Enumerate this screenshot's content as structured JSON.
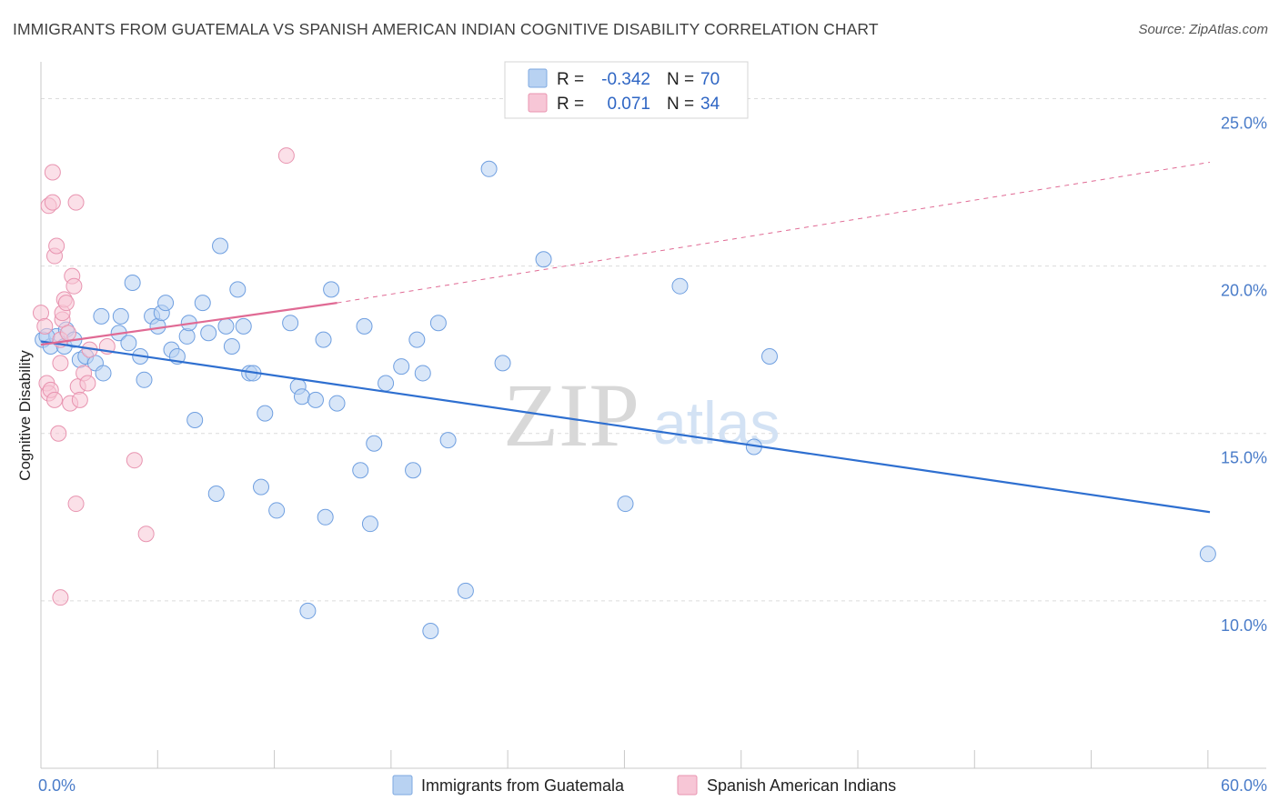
{
  "header": {
    "title": "IMMIGRANTS FROM GUATEMALA VS SPANISH AMERICAN INDIAN COGNITIVE DISABILITY CORRELATION CHART",
    "source": "Source: ZipAtlas.com"
  },
  "watermark": {
    "zip": "ZIP",
    "atlas": "atlas"
  },
  "legend": {
    "rows": [
      {
        "r_label": "R =",
        "r_value": "-0.342",
        "n_label": "N =",
        "n_value": "70",
        "fill": "#b8d2f2",
        "stroke": "#7ea8e0"
      },
      {
        "r_label": "R =",
        "r_value": "0.071",
        "n_label": "N =",
        "n_value": "34",
        "fill": "#f7c6d6",
        "stroke": "#e894b0"
      }
    ]
  },
  "bottom_legend": [
    {
      "label": "Immigrants from Guatemala",
      "fill": "#b8d2f2",
      "stroke": "#7ea8e0"
    },
    {
      "label": "Spanish American Indians",
      "fill": "#f7c6d6",
      "stroke": "#e894b0"
    }
  ],
  "chart_data": {
    "type": "scatter",
    "title": "IMMIGRANTS FROM GUATEMALA VS SPANISH AMERICAN INDIAN COGNITIVE DISABILITY CORRELATION CHART",
    "xlabel": "",
    "ylabel": "Cognitive Disability",
    "xlim": [
      0,
      60
    ],
    "ylim": [
      5,
      25.8
    ],
    "x_tick_labels": [
      "0.0%",
      "60.0%"
    ],
    "y_ticks": [
      10,
      15,
      20,
      25
    ],
    "y_tick_labels": [
      "10.0%",
      "15.0%",
      "20.0%",
      "25.0%"
    ],
    "grid": true,
    "legend_position": "top-center",
    "series": [
      {
        "name": "Immigrants from Guatemala",
        "color": "#6f9fe0",
        "line_color": "#2e6fd0",
        "trend": {
          "x": [
            0,
            60
          ],
          "y": [
            17.75,
            12.65
          ]
        },
        "points": [
          [
            0.1,
            17.8
          ],
          [
            0.5,
            17.6
          ],
          [
            0.8,
            17.9
          ],
          [
            1.2,
            17.6
          ],
          [
            1.3,
            18.1
          ],
          [
            1.7,
            17.8
          ],
          [
            2.0,
            17.2
          ],
          [
            2.3,
            17.3
          ],
          [
            2.8,
            17.1
          ],
          [
            3.2,
            16.8
          ],
          [
            3.1,
            18.5
          ],
          [
            4.0,
            18.0
          ],
          [
            4.1,
            18.5
          ],
          [
            4.5,
            17.7
          ],
          [
            4.7,
            19.5
          ],
          [
            5.1,
            17.3
          ],
          [
            5.3,
            16.6
          ],
          [
            5.7,
            18.5
          ],
          [
            6.0,
            18.2
          ],
          [
            6.2,
            18.6
          ],
          [
            6.4,
            18.9
          ],
          [
            6.7,
            17.5
          ],
          [
            7.0,
            17.3
          ],
          [
            7.5,
            17.9
          ],
          [
            7.6,
            18.3
          ],
          [
            7.9,
            15.4
          ],
          [
            8.3,
            18.9
          ],
          [
            8.6,
            18.0
          ],
          [
            9.0,
            13.2
          ],
          [
            9.2,
            20.6
          ],
          [
            9.5,
            18.2
          ],
          [
            9.8,
            17.6
          ],
          [
            10.1,
            19.3
          ],
          [
            10.4,
            18.2
          ],
          [
            10.7,
            16.8
          ],
          [
            10.9,
            16.8
          ],
          [
            11.3,
            13.4
          ],
          [
            11.5,
            15.6
          ],
          [
            12.1,
            12.7
          ],
          [
            12.8,
            18.3
          ],
          [
            13.2,
            16.4
          ],
          [
            13.4,
            16.1
          ],
          [
            13.7,
            9.7
          ],
          [
            14.1,
            16.0
          ],
          [
            14.5,
            17.8
          ],
          [
            14.6,
            12.5
          ],
          [
            14.9,
            19.3
          ],
          [
            15.2,
            15.9
          ],
          [
            16.4,
            13.9
          ],
          [
            16.6,
            18.2
          ],
          [
            16.9,
            12.3
          ],
          [
            17.1,
            14.7
          ],
          [
            17.7,
            16.5
          ],
          [
            18.5,
            17.0
          ],
          [
            19.1,
            13.9
          ],
          [
            19.3,
            17.8
          ],
          [
            19.6,
            16.8
          ],
          [
            20.0,
            9.1
          ],
          [
            20.4,
            18.3
          ],
          [
            20.9,
            14.8
          ],
          [
            21.8,
            10.3
          ],
          [
            23.0,
            22.9
          ],
          [
            23.7,
            17.1
          ],
          [
            25.8,
            20.2
          ],
          [
            30.0,
            12.9
          ],
          [
            32.8,
            19.4
          ],
          [
            36.6,
            14.6
          ],
          [
            37.4,
            17.3
          ],
          [
            59.9,
            11.4
          ],
          [
            0.3,
            17.9
          ]
        ]
      },
      {
        "name": "Spanish American Indians",
        "color": "#e894b0",
        "line_color": "#e06a94",
        "trend": {
          "x": [
            0,
            15.2
          ],
          "y": [
            17.65,
            18.9
          ],
          "dashed_extension": {
            "x": [
              15.2,
              60
            ],
            "y": [
              18.9,
              23.1
            ]
          }
        },
        "points": [
          [
            0.0,
            18.6
          ],
          [
            0.2,
            18.2
          ],
          [
            0.3,
            16.5
          ],
          [
            0.4,
            16.2
          ],
          [
            0.4,
            21.8
          ],
          [
            0.5,
            16.3
          ],
          [
            0.6,
            22.8
          ],
          [
            0.6,
            21.9
          ],
          [
            0.7,
            20.3
          ],
          [
            0.7,
            16.0
          ],
          [
            0.8,
            20.6
          ],
          [
            0.9,
            15.0
          ],
          [
            1.0,
            17.8
          ],
          [
            1.0,
            17.1
          ],
          [
            1.1,
            18.4
          ],
          [
            1.1,
            18.6
          ],
          [
            1.2,
            19.0
          ],
          [
            1.3,
            18.9
          ],
          [
            1.5,
            15.9
          ],
          [
            1.6,
            19.7
          ],
          [
            1.7,
            19.4
          ],
          [
            1.8,
            21.9
          ],
          [
            1.8,
            12.9
          ],
          [
            1.9,
            16.4
          ],
          [
            2.0,
            16.0
          ],
          [
            2.2,
            16.8
          ],
          [
            2.4,
            16.5
          ],
          [
            2.5,
            17.5
          ],
          [
            3.4,
            17.6
          ],
          [
            4.8,
            14.2
          ],
          [
            5.4,
            12.0
          ],
          [
            12.6,
            23.3
          ],
          [
            1.0,
            10.1
          ],
          [
            1.4,
            18.0
          ]
        ]
      }
    ]
  }
}
